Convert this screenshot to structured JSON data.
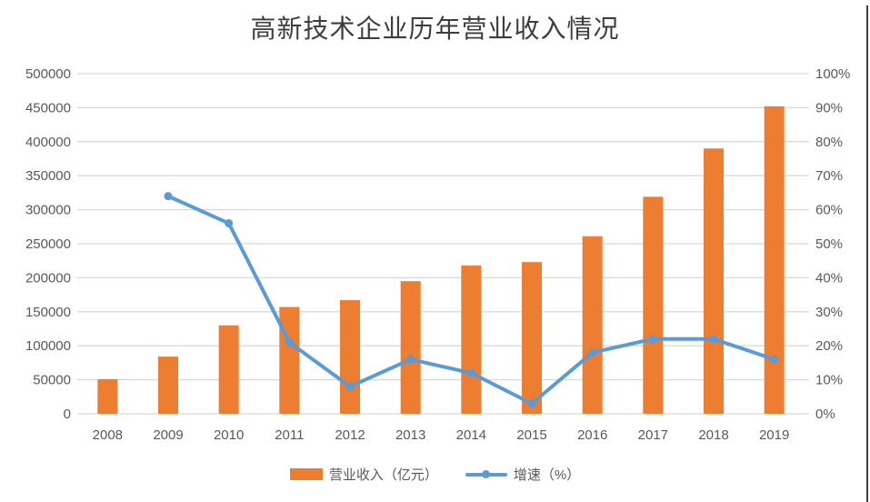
{
  "title": "高新技术企业历年营业收入情况",
  "legend": [
    {
      "label": "营业收入（亿元）",
      "type": "bar"
    },
    {
      "label": "增速（%）",
      "type": "line"
    }
  ],
  "colors": {
    "bar": "#ED7D31",
    "line": "#5B9BD5",
    "gridline": "#D9D9D9",
    "axis_text": "#595959",
    "title_text": "#3D3D3D"
  },
  "chart_data": {
    "type": "bar",
    "combo": "bar+line",
    "title": "高新技术企业历年营业收入情况",
    "categories": [
      "2008",
      "2009",
      "2010",
      "2011",
      "2012",
      "2013",
      "2014",
      "2015",
      "2016",
      "2017",
      "2018",
      "2019"
    ],
    "series": [
      {
        "name": "营业收入（亿元）",
        "type": "bar",
        "axis": "left",
        "color": "#ED7D31",
        "values": [
          51000,
          84000,
          130000,
          157000,
          167000,
          195000,
          218000,
          223000,
          261000,
          319000,
          390000,
          452000
        ]
      },
      {
        "name": "增速（%）",
        "type": "line",
        "axis": "right",
        "color": "#5B9BD5",
        "values": [
          null,
          64,
          56,
          21,
          8,
          16,
          12,
          3,
          18,
          22,
          22,
          16
        ]
      }
    ],
    "left_axis": {
      "min": 0,
      "max": 500000,
      "step": 50000,
      "ticks": [
        "0",
        "50000",
        "100000",
        "150000",
        "200000",
        "250000",
        "300000",
        "350000",
        "400000",
        "450000",
        "500000"
      ]
    },
    "right_axis": {
      "min": 0,
      "max": 100,
      "step": 10,
      "ticks": [
        "0%",
        "10%",
        "20%",
        "30%",
        "40%",
        "50%",
        "60%",
        "70%",
        "80%",
        "90%",
        "100%"
      ]
    },
    "grid": true,
    "legend_position": "bottom"
  }
}
